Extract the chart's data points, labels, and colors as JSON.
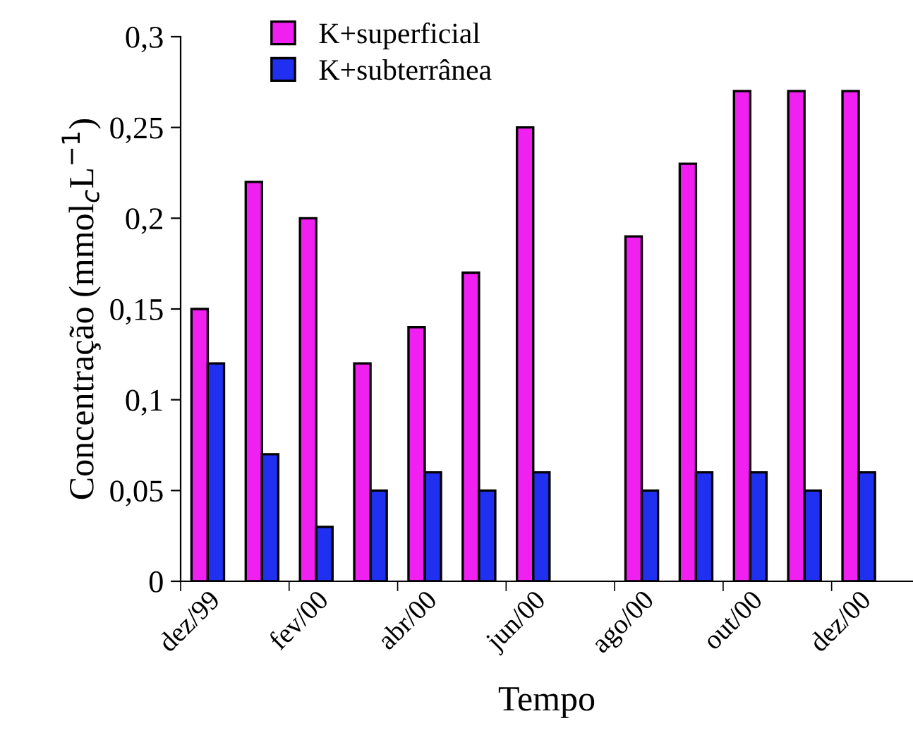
{
  "chart_data": {
    "type": "bar",
    "xlabel": "Tempo",
    "ylabel": "Concentração (mmol$_{c}$L$^{−1}$)",
    "categories": [
      "dez/99",
      null,
      "fev/00",
      null,
      "abr/00",
      null,
      "jun/00",
      null,
      "ago/00",
      null,
      "out/00",
      null,
      "dez/00"
    ],
    "series": [
      {
        "name": "K+superficial",
        "color": "#f020f0",
        "values": [
          0.15,
          0.22,
          0.2,
          0.12,
          0.14,
          0.17,
          0.25,
          null,
          0.19,
          0.23,
          0.27,
          0.27,
          0.27
        ]
      },
      {
        "name": "K+subterrânea",
        "color": "#2030f0",
        "values": [
          0.12,
          0.07,
          0.03,
          0.05,
          0.06,
          0.05,
          0.06,
          null,
          0.05,
          0.06,
          0.06,
          0.05,
          0.06
        ]
      }
    ],
    "ylim": [
      0,
      0.3
    ],
    "yticks": [
      {
        "value": 0,
        "label": "0"
      },
      {
        "value": 0.05,
        "label": "0,05"
      },
      {
        "value": 0.1,
        "label": "0,1"
      },
      {
        "value": 0.15,
        "label": "0,15"
      },
      {
        "value": 0.2,
        "label": "0,2"
      },
      {
        "value": 0.25,
        "label": "0,25"
      },
      {
        "value": 0.3,
        "label": "0,3"
      }
    ],
    "grid": false,
    "legend": "top left"
  }
}
